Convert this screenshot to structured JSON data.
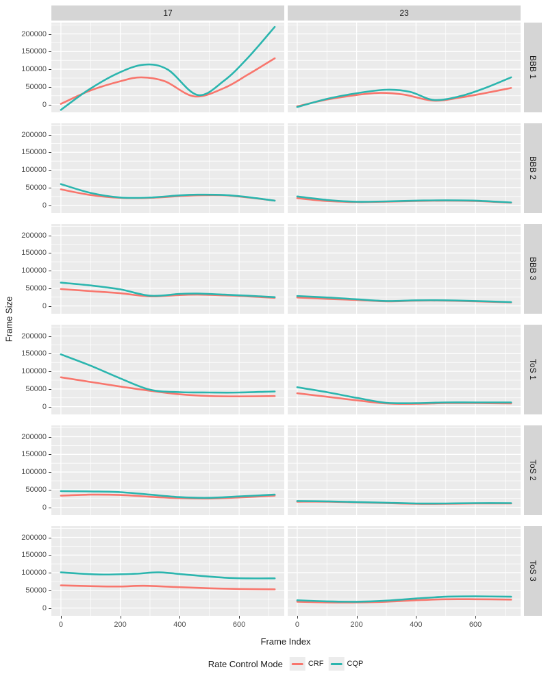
{
  "figure": {
    "background": "#FFFFFF",
    "panel_bg": "#EBEBEB",
    "strip_bg": "#D5D5D5",
    "grid_color": "#FFFFFF",
    "tick_text_color": "#4D4D4D",
    "text_color": "#1A1A1A"
  },
  "chart_data": {
    "type": "line",
    "title": "",
    "xlabel": "Frame Index",
    "ylabel": "Frame Size",
    "facet": {
      "cols": [
        "17",
        "23"
      ],
      "rows": [
        "BBB 1",
        "BBB 2",
        "BBB 3",
        "ToS 1",
        "ToS 2",
        "ToS 3"
      ]
    },
    "x_ticks": [
      0,
      200,
      400,
      600
    ],
    "y_ticks": [
      0,
      50000,
      100000,
      150000,
      200000
    ],
    "x_minor": [
      100,
      300,
      500,
      700
    ],
    "y_minor": [
      25000,
      75000,
      125000,
      175000,
      225000
    ],
    "xlim": [
      -32,
      752
    ],
    "ylim": [
      -22000,
      232000
    ],
    "grid": true,
    "legend": {
      "title": "Rate Control Mode",
      "position": "bottom",
      "entries": [
        {
          "name": "CRF",
          "color": "#F8766D"
        },
        {
          "name": "CQP",
          "color": "#2BB5AE"
        }
      ]
    },
    "series_colors": {
      "CRF": "#F8766D",
      "CQP": "#2BB5AE"
    },
    "panels": [
      {
        "row": "BBB 1",
        "col": "17",
        "series": [
          {
            "name": "CRF",
            "points": [
              [
                0,
                2000
              ],
              [
                100,
                40000
              ],
              [
                200,
                66000
              ],
              [
                270,
                77000
              ],
              [
                350,
                66000
              ],
              [
                450,
                23000
              ],
              [
                550,
                47000
              ],
              [
                630,
                85000
              ],
              [
                720,
                131000
              ]
            ]
          },
          {
            "name": "CQP",
            "points": [
              [
                0,
                -15000
              ],
              [
                90,
                40000
              ],
              [
                190,
                88000
              ],
              [
                280,
                113000
              ],
              [
                360,
                99000
              ],
              [
                460,
                27000
              ],
              [
                550,
                68000
              ],
              [
                630,
                133000
              ],
              [
                720,
                220000
              ]
            ]
          }
        ]
      },
      {
        "row": "BBB 1",
        "col": "23",
        "series": [
          {
            "name": "CRF",
            "points": [
              [
                0,
                -5000
              ],
              [
                100,
                14000
              ],
              [
                200,
                27000
              ],
              [
                280,
                33000
              ],
              [
                360,
                28000
              ],
              [
                460,
                11000
              ],
              [
                550,
                20000
              ],
              [
                630,
                32000
              ],
              [
                720,
                47000
              ]
            ]
          },
          {
            "name": "CQP",
            "points": [
              [
                0,
                -7000
              ],
              [
                100,
                16000
              ],
              [
                200,
                32000
              ],
              [
                300,
                42000
              ],
              [
                380,
                36000
              ],
              [
                460,
                13000
              ],
              [
                550,
                24000
              ],
              [
                630,
                46000
              ],
              [
                720,
                77000
              ]
            ]
          }
        ]
      },
      {
        "row": "BBB 2",
        "col": "17",
        "series": [
          {
            "name": "CRF",
            "points": [
              [
                0,
                45000
              ],
              [
                100,
                29000
              ],
              [
                200,
                21000
              ],
              [
                300,
                21000
              ],
              [
                400,
                26000
              ],
              [
                460,
                28000
              ],
              [
                550,
                28000
              ],
              [
                630,
                22000
              ],
              [
                720,
                13000
              ]
            ]
          },
          {
            "name": "CQP",
            "points": [
              [
                0,
                60000
              ],
              [
                100,
                35000
              ],
              [
                200,
                22000
              ],
              [
                300,
                22000
              ],
              [
                400,
                28000
              ],
              [
                460,
                30000
              ],
              [
                550,
                29000
              ],
              [
                630,
                23000
              ],
              [
                720,
                13000
              ]
            ]
          }
        ]
      },
      {
        "row": "BBB 2",
        "col": "23",
        "series": [
          {
            "name": "CRF",
            "points": [
              [
                0,
                20000
              ],
              [
                100,
                12000
              ],
              [
                200,
                9000
              ],
              [
                300,
                10000
              ],
              [
                400,
                12000
              ],
              [
                500,
                13000
              ],
              [
                600,
                12000
              ],
              [
                720,
                7000
              ]
            ]
          },
          {
            "name": "CQP",
            "points": [
              [
                0,
                25000
              ],
              [
                100,
                15000
              ],
              [
                200,
                10000
              ],
              [
                300,
                11000
              ],
              [
                400,
                13000
              ],
              [
                500,
                14000
              ],
              [
                600,
                13000
              ],
              [
                720,
                8000
              ]
            ]
          }
        ]
      },
      {
        "row": "BBB 3",
        "col": "17",
        "series": [
          {
            "name": "CRF",
            "points": [
              [
                0,
                48000
              ],
              [
                100,
                42000
              ],
              [
                200,
                36000
              ],
              [
                300,
                27000
              ],
              [
                400,
                31000
              ],
              [
                460,
                32000
              ],
              [
                550,
                30000
              ],
              [
                630,
                27000
              ],
              [
                720,
                23000
              ]
            ]
          },
          {
            "name": "CQP",
            "points": [
              [
                0,
                66000
              ],
              [
                100,
                58000
              ],
              [
                200,
                47000
              ],
              [
                300,
                29000
              ],
              [
                400,
                34000
              ],
              [
                460,
                35000
              ],
              [
                550,
                32000
              ],
              [
                630,
                29000
              ],
              [
                720,
                25000
              ]
            ]
          }
        ]
      },
      {
        "row": "BBB 3",
        "col": "23",
        "series": [
          {
            "name": "CRF",
            "points": [
              [
                0,
                24000
              ],
              [
                100,
                20000
              ],
              [
                200,
                17000
              ],
              [
                300,
                13000
              ],
              [
                400,
                15000
              ],
              [
                500,
                15000
              ],
              [
                600,
                13000
              ],
              [
                720,
                10000
              ]
            ]
          },
          {
            "name": "CQP",
            "points": [
              [
                0,
                28000
              ],
              [
                100,
                24000
              ],
              [
                200,
                19000
              ],
              [
                300,
                14000
              ],
              [
                400,
                16000
              ],
              [
                500,
                16000
              ],
              [
                600,
                14000
              ],
              [
                720,
                11000
              ]
            ]
          }
        ]
      },
      {
        "row": "ToS 1",
        "col": "17",
        "series": [
          {
            "name": "CRF",
            "points": [
              [
                0,
                83000
              ],
              [
                100,
                70000
              ],
              [
                200,
                57000
              ],
              [
                300,
                45000
              ],
              [
                400,
                35000
              ],
              [
                500,
                30000
              ],
              [
                600,
                29000
              ],
              [
                720,
                30000
              ]
            ]
          },
          {
            "name": "CQP",
            "points": [
              [
                0,
                148000
              ],
              [
                100,
                116000
              ],
              [
                200,
                80000
              ],
              [
                300,
                48000
              ],
              [
                400,
                41000
              ],
              [
                500,
                40000
              ],
              [
                600,
                40000
              ],
              [
                720,
                43000
              ]
            ]
          }
        ]
      },
      {
        "row": "ToS 1",
        "col": "23",
        "series": [
          {
            "name": "CRF",
            "points": [
              [
                0,
                38000
              ],
              [
                100,
                28000
              ],
              [
                200,
                18000
              ],
              [
                300,
                9000
              ],
              [
                400,
                8000
              ],
              [
                500,
                10000
              ],
              [
                600,
                10000
              ],
              [
                720,
                9000
              ]
            ]
          },
          {
            "name": "CQP",
            "points": [
              [
                0,
                55000
              ],
              [
                100,
                41000
              ],
              [
                200,
                25000
              ],
              [
                300,
                11000
              ],
              [
                400,
                10000
              ],
              [
                500,
                12000
              ],
              [
                600,
                12000
              ],
              [
                720,
                12000
              ]
            ]
          }
        ]
      },
      {
        "row": "ToS 2",
        "col": "17",
        "series": [
          {
            "name": "CRF",
            "points": [
              [
                0,
                33000
              ],
              [
                100,
                36000
              ],
              [
                200,
                35000
              ],
              [
                300,
                30000
              ],
              [
                400,
                26000
              ],
              [
                500,
                25000
              ],
              [
                600,
                28000
              ],
              [
                720,
                33000
              ]
            ]
          },
          {
            "name": "CQP",
            "points": [
              [
                0,
                46000
              ],
              [
                100,
                45000
              ],
              [
                200,
                43000
              ],
              [
                300,
                36000
              ],
              [
                400,
                29000
              ],
              [
                500,
                27000
              ],
              [
                600,
                31000
              ],
              [
                720,
                36000
              ]
            ]
          }
        ]
      },
      {
        "row": "ToS 2",
        "col": "23",
        "series": [
          {
            "name": "CRF",
            "points": [
              [
                0,
                16000
              ],
              [
                100,
                16000
              ],
              [
                200,
                14000
              ],
              [
                300,
                12000
              ],
              [
                400,
                10000
              ],
              [
                500,
                10000
              ],
              [
                600,
                11000
              ],
              [
                720,
                11000
              ]
            ]
          },
          {
            "name": "CQP",
            "points": [
              [
                0,
                18000
              ],
              [
                100,
                17000
              ],
              [
                200,
                15000
              ],
              [
                300,
                13000
              ],
              [
                400,
                11000
              ],
              [
                500,
                11000
              ],
              [
                600,
                12000
              ],
              [
                720,
                12000
              ]
            ]
          }
        ]
      },
      {
        "row": "ToS 3",
        "col": "17",
        "series": [
          {
            "name": "CRF",
            "points": [
              [
                0,
                64000
              ],
              [
                100,
                62000
              ],
              [
                200,
                61000
              ],
              [
                280,
                63000
              ],
              [
                400,
                59000
              ],
              [
                500,
                56000
              ],
              [
                600,
                54000
              ],
              [
                720,
                53000
              ]
            ]
          },
          {
            "name": "CQP",
            "points": [
              [
                0,
                101000
              ],
              [
                130,
                95000
              ],
              [
                250,
                97000
              ],
              [
                330,
                101000
              ],
              [
                430,
                94000
              ],
              [
                550,
                86000
              ],
              [
                630,
                84000
              ],
              [
                720,
                84000
              ]
            ]
          }
        ]
      },
      {
        "row": "ToS 3",
        "col": "23",
        "series": [
          {
            "name": "CRF",
            "points": [
              [
                0,
                18000
              ],
              [
                100,
                16000
              ],
              [
                200,
                16000
              ],
              [
                300,
                18000
              ],
              [
                400,
                22000
              ],
              [
                500,
                25000
              ],
              [
                600,
                25000
              ],
              [
                720,
                24000
              ]
            ]
          },
          {
            "name": "CQP",
            "points": [
              [
                0,
                22000
              ],
              [
                100,
                19000
              ],
              [
                200,
                18000
              ],
              [
                300,
                21000
              ],
              [
                400,
                27000
              ],
              [
                500,
                32000
              ],
              [
                600,
                33000
              ],
              [
                720,
                32000
              ]
            ]
          }
        ]
      }
    ]
  }
}
